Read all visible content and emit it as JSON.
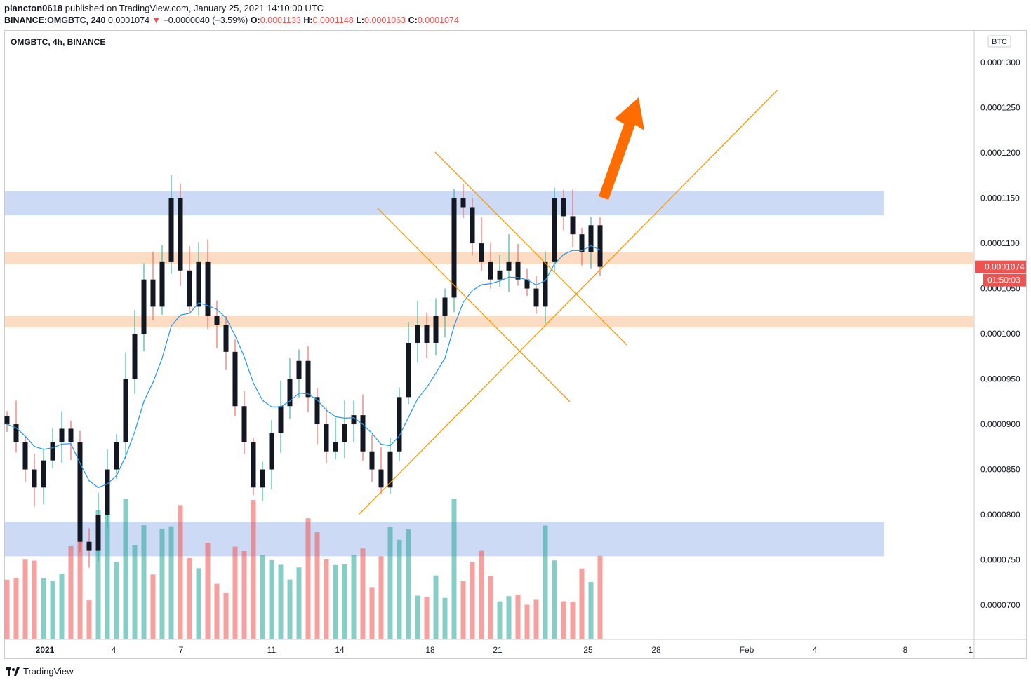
{
  "header": {
    "publisher_user": "plancton0618",
    "publisher_text": "published on TradingView.com, January 25, 2021 14:10:00 UTC",
    "symbol_line": "BINANCE:OMGBTC, 240",
    "last": "0.0001074",
    "change_arrow": "▼",
    "change": "−0.0000040 (−3.59%)",
    "o_label": "O:",
    "o_value": "0.0001133",
    "h_label": "H:",
    "h_value": "0.0001148",
    "l_label": "L:",
    "l_value": "0.0001063",
    "c_label": "C:",
    "c_value": "0.0001074"
  },
  "legend": "OMGBTC, 4h, BINANCE",
  "footer": {
    "brand": "TradingView",
    "logo_icon": "tradingview-logo-icon"
  },
  "colors": {
    "up": "#26a69a",
    "down": "#ef5350",
    "ma": "#2196f3",
    "blue_zone": "#c7d6f5",
    "orange_zone": "#fcd9bc",
    "trendline": "#ff9800",
    "arrow": "#ff6d00"
  },
  "chart_data": {
    "type": "candlestick",
    "currency_badge": "BTC",
    "y_ticks": [
      "0.0001300",
      "0.0001250",
      "0.0001200",
      "0.0001150",
      "0.0001100",
      "0.0001050",
      "0.0001000",
      "0.0000950",
      "0.0000900",
      "0.0000850",
      "0.0000800",
      "0.0000750",
      "0.0000700"
    ],
    "x_ticks": [
      "2021",
      "4",
      "7",
      "11",
      "14",
      "18",
      "21",
      "25",
      "28",
      "Feb",
      "4",
      "8",
      "1"
    ],
    "last_price_label": "0.0001074",
    "countdown_label": "01:50:03",
    "y_range": [
      6.62e-05,
      0.0001335
    ],
    "zones": [
      {
        "kind": "blue",
        "from": 0.0001131,
        "to": 0.0001158
      },
      {
        "kind": "orange",
        "from": 0.0001077,
        "to": 0.000109
      },
      {
        "kind": "orange",
        "from": 0.0001007,
        "to": 0.000102
      },
      {
        "kind": "blue",
        "from": 7.54e-05,
        "to": 7.92e-05
      }
    ],
    "close_series": [
      9e-05,
      8.8e-05,
      8.5e-05,
      8.3e-05,
      8.6e-05,
      8.8e-05,
      8.95e-05,
      8.8e-05,
      7.7e-05,
      7.6e-05,
      8e-05,
      8.5e-05,
      8.8e-05,
      9.5e-05,
      0.0001,
      0.000106,
      0.000103,
      0.000108,
      0.000115,
      0.000107,
      0.000103,
      0.000108,
      0.000102,
      0.000101,
      9.8e-05,
      9.2e-05,
      8.8e-05,
      8.3e-05,
      8.5e-05,
      8.9e-05,
      9.2e-05,
      9.5e-05,
      9.7e-05,
      9.3e-05,
      9e-05,
      8.7e-05,
      8.8e-05,
      9e-05,
      9.1e-05,
      8.7e-05,
      8.5e-05,
      8.3e-05,
      8.7e-05,
      9.3e-05,
      9.9e-05,
      0.000101,
      9.9e-05,
      0.000102,
      0.000104,
      0.000115,
      0.000114,
      0.00011,
      0.000108,
      0.000106,
      0.000107,
      0.000108,
      0.000106,
      0.000105,
      0.000103,
      0.000108,
      0.000115,
      0.000113,
      0.000111,
      0.000109,
      0.000112,
      0.0001074
    ]
  }
}
